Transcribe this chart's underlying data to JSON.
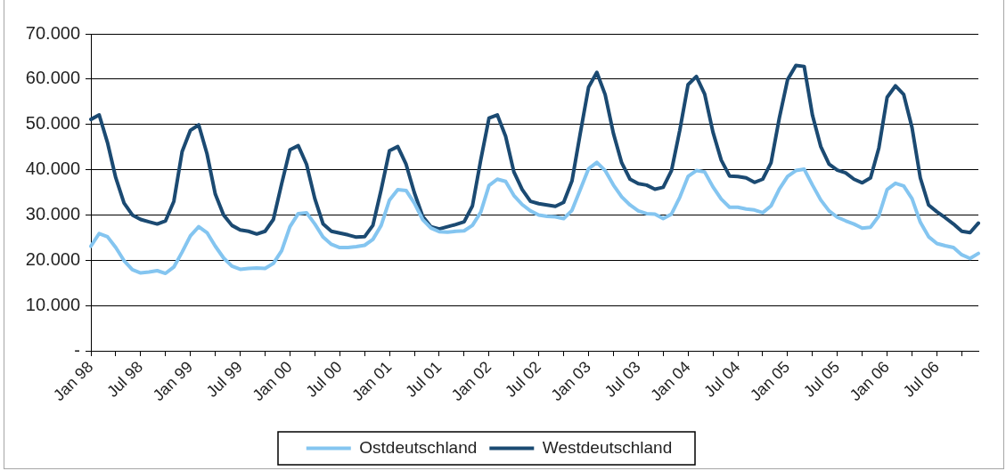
{
  "chart_data": {
    "type": "line",
    "categories": [
      "Jan 98",
      null,
      null,
      null,
      null,
      null,
      "Jul 98",
      null,
      null,
      null,
      null,
      null,
      "Jan 99",
      null,
      null,
      null,
      null,
      null,
      "Jul 99",
      null,
      null,
      null,
      null,
      null,
      "Jan 00",
      null,
      null,
      null,
      null,
      null,
      "Jul 00",
      null,
      null,
      null,
      null,
      null,
      "Jan 01",
      null,
      null,
      null,
      null,
      null,
      "Jul 01",
      null,
      null,
      null,
      null,
      null,
      "Jan 02",
      null,
      null,
      null,
      null,
      null,
      "Jul 02",
      null,
      null,
      null,
      null,
      null,
      "Jan 03",
      null,
      null,
      null,
      null,
      null,
      "Jul 03",
      null,
      null,
      null,
      null,
      null,
      "Jan 04",
      null,
      null,
      null,
      null,
      null,
      "Jul 04",
      null,
      null,
      null,
      null,
      null,
      "Jan 05",
      null,
      null,
      null,
      null,
      null,
      "Jul 05",
      null,
      null,
      null,
      null,
      null,
      "Jan 06",
      null,
      null,
      null,
      null,
      null,
      "Jul 06",
      null,
      null,
      null,
      null,
      null
    ],
    "series": [
      {
        "name": "Ostdeutschland",
        "color": "#84c5f0",
        "values": [
          23100,
          25900,
          25200,
          22800,
          19900,
          17900,
          17200,
          17400,
          17700,
          17100,
          18500,
          21800,
          25400,
          27400,
          26100,
          23100,
          20500,
          18700,
          18000,
          18200,
          18300,
          18200,
          19300,
          22100,
          27400,
          30300,
          30500,
          28000,
          25100,
          23500,
          22800,
          22800,
          23000,
          23300,
          24600,
          27700,
          33300,
          35600,
          35400,
          32600,
          29000,
          27100,
          26300,
          26200,
          26400,
          26500,
          27700,
          30600,
          36500,
          37900,
          37400,
          34300,
          32300,
          30900,
          30000,
          29700,
          29600,
          29200,
          31000,
          35600,
          40200,
          41600,
          39800,
          36600,
          34000,
          32200,
          30900,
          30300,
          30200,
          29200,
          30200,
          33900,
          38500,
          39800,
          39500,
          36200,
          33500,
          31700,
          31700,
          31300,
          31100,
          30500,
          32000,
          35700,
          38500,
          39800,
          40100,
          36600,
          33300,
          30900,
          29500,
          28700,
          28000,
          27100,
          27300,
          29800,
          35600,
          37000,
          36400,
          33600,
          28400,
          25200,
          23700,
          23200,
          22800,
          21200,
          20400,
          21500
        ]
      },
      {
        "name": "Westdeutschland",
        "color": "#1b4a72",
        "values": [
          51100,
          52100,
          46000,
          38200,
          32600,
          30000,
          29000,
          28500,
          28000,
          28700,
          33000,
          44000,
          48700,
          49900,
          43500,
          34600,
          30000,
          27700,
          26700,
          26400,
          25800,
          26400,
          29000,
          36900,
          44400,
          45300,
          41200,
          33600,
          28000,
          26400,
          26000,
          25600,
          25100,
          25200,
          27700,
          35600,
          44200,
          45100,
          41200,
          34900,
          29700,
          27400,
          26900,
          27400,
          27900,
          28500,
          32000,
          42100,
          51400,
          52100,
          47400,
          39500,
          35600,
          33000,
          32500,
          32200,
          31900,
          32800,
          37500,
          48000,
          58200,
          61500,
          56600,
          48000,
          41500,
          37900,
          36900,
          36600,
          35700,
          36100,
          39800,
          48700,
          58800,
          60600,
          56700,
          48300,
          42100,
          38600,
          38500,
          38200,
          37200,
          37900,
          41500,
          51400,
          59900,
          63000,
          62800,
          52000,
          45100,
          41200,
          39900,
          39300,
          37900,
          37100,
          38200,
          44800,
          56000,
          58500,
          56600,
          49300,
          38200,
          32200,
          30700,
          29400,
          28000,
          26400,
          26100,
          28200
        ]
      }
    ],
    "ylim": [
      0,
      70000
    ],
    "yticks": [
      {
        "value": 0,
        "label": "-"
      },
      {
        "value": 10000,
        "label": "10.000"
      },
      {
        "value": 20000,
        "label": "20.000"
      },
      {
        "value": 30000,
        "label": "30.000"
      },
      {
        "value": 40000,
        "label": "40.000"
      },
      {
        "value": 50000,
        "label": "50.000"
      },
      {
        "value": 60000,
        "label": "60.000"
      },
      {
        "value": 70000,
        "label": "70.000"
      }
    ],
    "grid": "y",
    "legend": "bottom",
    "marker": "none",
    "line_style": "solid"
  }
}
